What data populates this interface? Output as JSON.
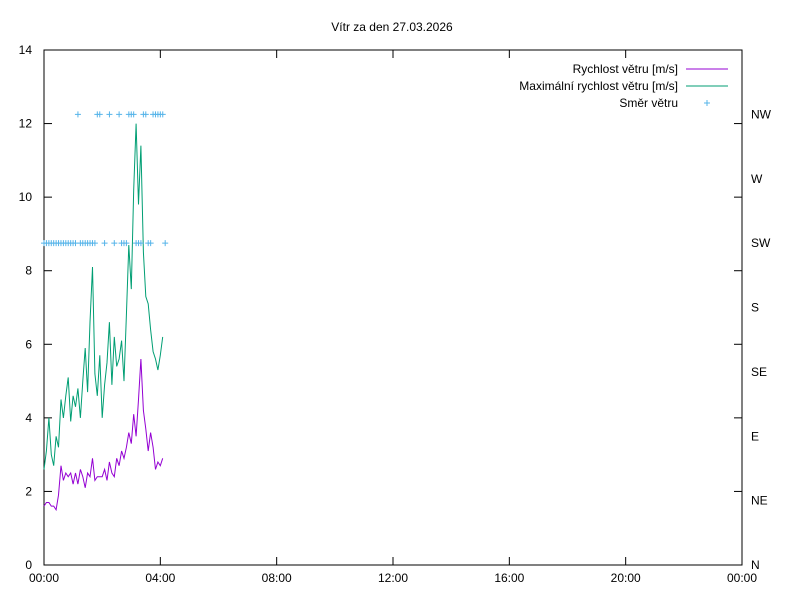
{
  "chart_data": {
    "type": "line",
    "title": "Vítr za den 27.03.2026",
    "xlabel": "",
    "ylabel": "",
    "x_tick_labels": [
      "00:00",
      "04:00",
      "08:00",
      "12:00",
      "16:00",
      "20:00",
      "00:00"
    ],
    "xlim_hours": [
      0,
      24
    ],
    "ylim": [
      0,
      14
    ],
    "y_ticks": [
      0,
      2,
      4,
      6,
      8,
      10,
      12,
      14
    ],
    "y2_ticks": [
      "N",
      "NE",
      "E",
      "SE",
      "S",
      "SW",
      "W",
      "NW"
    ],
    "grid": false,
    "legend_placement": "top-right",
    "colors": {
      "speed": "#9400d3",
      "max_speed": "#009e73",
      "direction": "#56b4e9",
      "axis": "#000000"
    },
    "series": [
      {
        "name": "Rychlost větru [m/s]",
        "key": "speed",
        "x_hours": [
          0.0,
          0.083,
          0.167,
          0.25,
          0.333,
          0.417,
          0.5,
          0.583,
          0.667,
          0.75,
          0.833,
          0.917,
          1.0,
          1.083,
          1.167,
          1.25,
          1.333,
          1.417,
          1.5,
          1.583,
          1.667,
          1.75,
          1.833,
          1.917,
          2.0,
          2.083,
          2.167,
          2.25,
          2.333,
          2.417,
          2.5,
          2.583,
          2.667,
          2.75,
          2.833,
          2.917,
          3.0,
          3.083,
          3.167,
          3.25,
          3.333,
          3.417,
          3.5,
          3.583,
          3.667,
          3.75,
          3.833,
          3.917,
          4.0,
          4.083
        ],
        "values": [
          1.6,
          1.7,
          1.7,
          1.6,
          1.6,
          1.5,
          1.9,
          2.7,
          2.3,
          2.5,
          2.4,
          2.5,
          2.2,
          2.5,
          2.2,
          2.6,
          2.4,
          2.1,
          2.5,
          2.4,
          2.9,
          2.3,
          2.4,
          2.4,
          2.4,
          2.6,
          2.3,
          2.8,
          2.5,
          2.4,
          2.9,
          2.7,
          3.1,
          2.9,
          3.2,
          3.6,
          3.3,
          4.1,
          3.5,
          4.5,
          5.6,
          4.2,
          3.7,
          3.1,
          3.6,
          3.2,
          2.6,
          2.8,
          2.7,
          2.9
        ]
      },
      {
        "name": "Maximální rychlost větru [m/s]",
        "key": "max_speed",
        "x_hours": [
          0.0,
          0.083,
          0.167,
          0.25,
          0.333,
          0.417,
          0.5,
          0.583,
          0.667,
          0.75,
          0.833,
          0.917,
          1.0,
          1.083,
          1.167,
          1.25,
          1.333,
          1.417,
          1.5,
          1.583,
          1.667,
          1.75,
          1.833,
          1.917,
          2.0,
          2.083,
          2.167,
          2.25,
          2.333,
          2.417,
          2.5,
          2.583,
          2.667,
          2.75,
          2.833,
          2.917,
          3.0,
          3.083,
          3.167,
          3.25,
          3.333,
          3.417,
          3.5,
          3.583,
          3.667,
          3.75,
          3.833,
          3.917,
          4.0,
          4.083
        ],
        "values": [
          2.6,
          3.1,
          4.0,
          3.0,
          2.7,
          3.5,
          3.2,
          4.5,
          4.0,
          4.6,
          5.1,
          3.9,
          4.6,
          4.3,
          4.8,
          4.0,
          5.0,
          5.9,
          4.7,
          6.6,
          8.1,
          5.2,
          4.6,
          5.7,
          4.0,
          4.9,
          5.5,
          6.6,
          4.9,
          6.2,
          5.4,
          5.6,
          6.1,
          5.0,
          6.8,
          8.7,
          7.5,
          10.2,
          12.0,
          9.8,
          11.4,
          8.5,
          7.3,
          7.1,
          6.4,
          5.8,
          5.6,
          5.3,
          5.7,
          6.2
        ]
      },
      {
        "name": "Směr větru",
        "key": "direction",
        "style": "points",
        "x_hours": [
          0.0,
          0.083,
          0.167,
          0.25,
          0.333,
          0.417,
          0.5,
          0.583,
          0.667,
          0.75,
          0.833,
          0.917,
          1.0,
          1.083,
          1.167,
          1.25,
          1.333,
          1.417,
          1.5,
          1.583,
          1.667,
          1.75,
          1.833,
          1.917,
          2.083,
          2.25,
          2.417,
          2.583,
          2.667,
          2.75,
          2.833,
          2.917,
          3.0,
          3.083,
          3.167,
          3.25,
          3.333,
          3.417,
          3.5,
          3.583,
          3.667,
          3.75,
          3.833,
          3.917,
          4.0,
          4.083,
          4.167
        ],
        "values": [
          "SW",
          "SW",
          "SW",
          "SW",
          "SW",
          "SW",
          "SW",
          "SW",
          "SW",
          "SW",
          "SW",
          "SW",
          "SW",
          "SW",
          "NW",
          "SW",
          "SW",
          "SW",
          "SW",
          "SW",
          "SW",
          "SW",
          "NW",
          "NW",
          "SW",
          "NW",
          "SW",
          "NW",
          "SW",
          "SW",
          "SW",
          "NW",
          "NW",
          "NW",
          "SW",
          "SW",
          "SW",
          "NW",
          "NW",
          "SW",
          "SW",
          "NW",
          "NW",
          "NW",
          "NW",
          "NW",
          "SW"
        ]
      }
    ]
  }
}
